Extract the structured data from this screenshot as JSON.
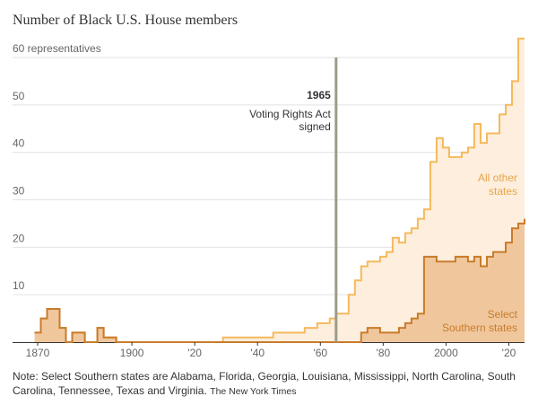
{
  "chart_data": {
    "type": "area",
    "title": "Number of Black U.S. House members",
    "ylim": [
      0,
      60
    ],
    "xlim": [
      1868,
      2025
    ],
    "y_ticks": [
      {
        "value": 60,
        "label": "60 representatives"
      },
      {
        "value": 50,
        "label": "50"
      },
      {
        "value": 40,
        "label": "40"
      },
      {
        "value": 30,
        "label": "30"
      },
      {
        "value": 20,
        "label": "20"
      },
      {
        "value": 10,
        "label": "10"
      }
    ],
    "x_ticks": [
      {
        "value": 1870,
        "label": "1870"
      },
      {
        "value": 1900,
        "label": "1900"
      },
      {
        "value": 1920,
        "label": "'20"
      },
      {
        "value": 1940,
        "label": "'40"
      },
      {
        "value": 1960,
        "label": "'60"
      },
      {
        "value": 1980,
        "label": "'80"
      },
      {
        "value": 2000,
        "label": "2000"
      },
      {
        "value": 2020,
        "label": "'20"
      }
    ],
    "grid": true,
    "series": [
      {
        "name": "All other states",
        "label_lines": [
          "All other",
          "states"
        ],
        "color": "#f5b95c",
        "fill": "#fdeedd",
        "x": [
          1869,
          1871,
          1873,
          1875,
          1877,
          1879,
          1881,
          1883,
          1885,
          1887,
          1889,
          1891,
          1893,
          1895,
          1897,
          1899,
          1901,
          1903,
          1905,
          1907,
          1909,
          1911,
          1913,
          1915,
          1917,
          1919,
          1921,
          1923,
          1925,
          1927,
          1929,
          1931,
          1933,
          1935,
          1937,
          1939,
          1941,
          1943,
          1945,
          1947,
          1949,
          1951,
          1953,
          1955,
          1957,
          1959,
          1961,
          1963,
          1965,
          1967,
          1969,
          1971,
          1973,
          1975,
          1977,
          1979,
          1981,
          1983,
          1985,
          1987,
          1989,
          1991,
          1993,
          1995,
          1997,
          1999,
          2001,
          2003,
          2005,
          2007,
          2009,
          2011,
          2013,
          2015,
          2017,
          2019,
          2021,
          2023,
          2025
        ],
        "values": [
          2,
          5,
          7,
          7,
          3,
          0,
          2,
          2,
          0,
          0,
          3,
          1,
          1,
          0,
          0,
          0,
          0,
          0,
          0,
          0,
          0,
          0,
          0,
          0,
          0,
          0,
          0,
          0,
          0,
          0,
          1,
          1,
          1,
          1,
          1,
          1,
          1,
          1,
          2,
          2,
          2,
          2,
          2,
          3,
          3,
          4,
          4,
          5,
          6,
          6,
          10,
          13,
          16,
          17,
          17,
          18,
          19,
          22,
          21,
          23,
          24,
          26,
          28,
          38,
          43,
          41,
          39,
          39,
          40,
          41,
          46,
          42,
          44,
          44,
          48,
          50,
          55,
          64,
          64
        ]
      },
      {
        "name": "Select Southern states",
        "label_lines": [
          "Select",
          "Southern states"
        ],
        "color": "#c97b2b",
        "fill": "#f0c79d",
        "x": [
          1869,
          1871,
          1873,
          1875,
          1877,
          1879,
          1881,
          1883,
          1885,
          1887,
          1889,
          1891,
          1893,
          1895,
          1897,
          1899,
          1901,
          1903,
          1905,
          1907,
          1909,
          1911,
          1913,
          1915,
          1917,
          1919,
          1921,
          1923,
          1925,
          1927,
          1929,
          1931,
          1933,
          1935,
          1937,
          1939,
          1941,
          1943,
          1945,
          1947,
          1949,
          1951,
          1953,
          1955,
          1957,
          1959,
          1961,
          1963,
          1965,
          1967,
          1969,
          1971,
          1973,
          1975,
          1977,
          1979,
          1981,
          1983,
          1985,
          1987,
          1989,
          1991,
          1993,
          1995,
          1997,
          1999,
          2001,
          2003,
          2005,
          2007,
          2009,
          2011,
          2013,
          2015,
          2017,
          2019,
          2021,
          2023,
          2025
        ],
        "values": [
          2,
          5,
          7,
          7,
          3,
          0,
          2,
          2,
          0,
          0,
          3,
          1,
          1,
          0,
          0,
          0,
          0,
          0,
          0,
          0,
          0,
          0,
          0,
          0,
          0,
          0,
          0,
          0,
          0,
          0,
          0,
          0,
          0,
          0,
          0,
          0,
          0,
          0,
          0,
          0,
          0,
          0,
          0,
          0,
          0,
          0,
          0,
          0,
          0,
          0,
          0,
          0,
          2,
          3,
          3,
          2,
          2,
          2,
          3,
          4,
          5,
          6,
          18,
          18,
          17,
          17,
          17,
          18,
          18,
          17,
          18,
          16,
          18,
          19,
          19,
          21,
          24,
          25,
          26
        ]
      }
    ],
    "annotations": [
      {
        "x": 1965,
        "year": "1965",
        "lines": [
          "Voting Rights Act",
          "signed"
        ]
      }
    ],
    "note": "Note: Select Southern states are Alabama, Florida, Georgia, Louisiana, Mississippi, North Carolina, South Carolina, Tennessee, Texas and Virginia.",
    "credit": "The New York Times"
  }
}
